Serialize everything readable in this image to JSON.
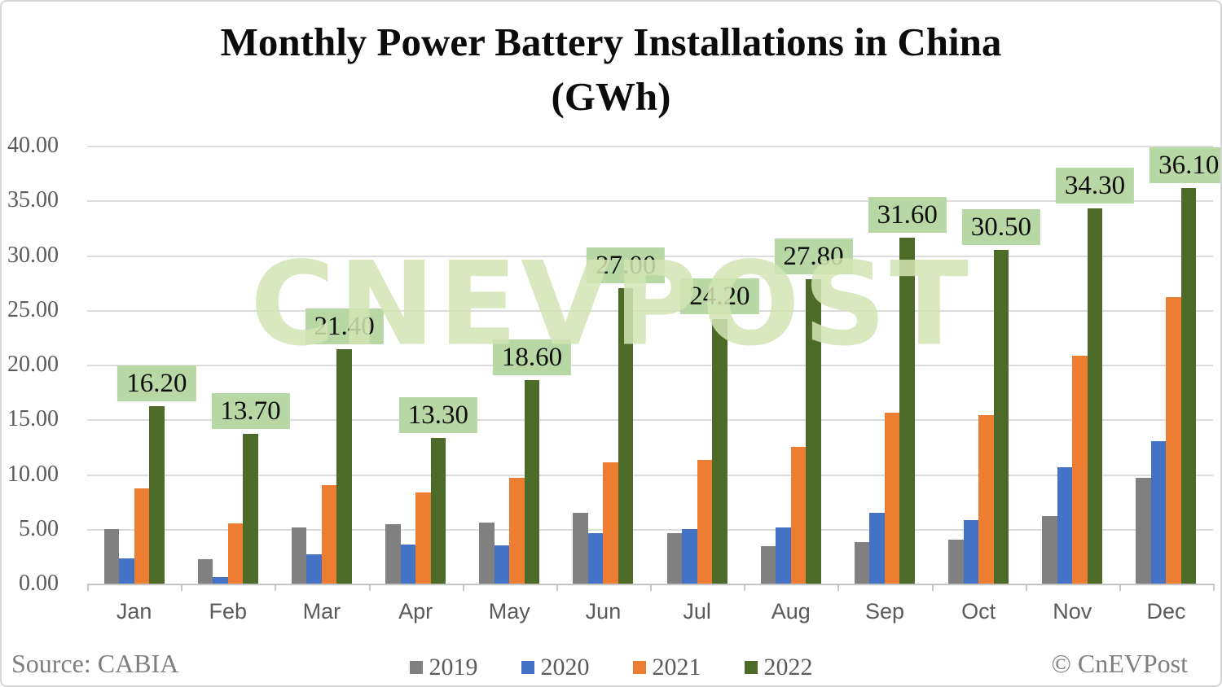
{
  "header": {
    "title_line1": "Monthly Power Battery Installations in China",
    "title_line2": "(GWh)"
  },
  "watermark": "CNEVPOST",
  "footer": {
    "source": "Source: CABIA",
    "copyright": "© CnEVPost"
  },
  "colors": {
    "label_background": "#b7d7a4",
    "gridline": "#dcdcdc",
    "axis_text": "#5a5a5a",
    "footer_text": "#7f7f7f",
    "watermark_green": "#d4e5b4"
  },
  "chart_data": {
    "type": "bar",
    "title": "Monthly Power Battery Installations in China (GWh)",
    "xlabel": "",
    "ylabel": "",
    "ylim": [
      0,
      40
    ],
    "ytick_step": 5,
    "ytick_labels": [
      "40.00",
      "35.00",
      "30.00",
      "25.00",
      "20.00",
      "15.00",
      "10.00",
      "5.00",
      "0.00"
    ],
    "grid": true,
    "legend_position": "bottom",
    "categories": [
      "Jan",
      "Feb",
      "Mar",
      "Apr",
      "May",
      "Jun",
      "Jul",
      "Aug",
      "Sep",
      "Oct",
      "Nov",
      "Dec"
    ],
    "series": [
      {
        "name": "2019",
        "color": "#808080",
        "values": [
          5.0,
          2.2,
          5.1,
          5.4,
          5.6,
          6.5,
          4.6,
          3.4,
          3.8,
          4.0,
          6.2,
          9.7
        ]
      },
      {
        "name": "2020",
        "color": "#4472c4",
        "values": [
          2.3,
          0.6,
          2.7,
          3.6,
          3.5,
          4.6,
          5.0,
          5.1,
          6.5,
          5.8,
          10.6,
          13.0
        ]
      },
      {
        "name": "2021",
        "color": "#ed7d31",
        "values": [
          8.7,
          5.5,
          9.0,
          8.3,
          9.7,
          11.1,
          11.3,
          12.5,
          15.6,
          15.4,
          20.8,
          26.2
        ]
      },
      {
        "name": "2022",
        "color": "#4d6b28",
        "values": [
          16.2,
          13.7,
          21.4,
          13.3,
          18.6,
          27.0,
          24.2,
          27.8,
          31.6,
          30.5,
          34.3,
          36.1
        ],
        "data_labels": [
          "16.20",
          "13.70",
          "21.40",
          "13.30",
          "18.60",
          "27.00",
          "24.20",
          "27.80",
          "31.60",
          "30.50",
          "34.30",
          "36.10"
        ]
      }
    ]
  }
}
